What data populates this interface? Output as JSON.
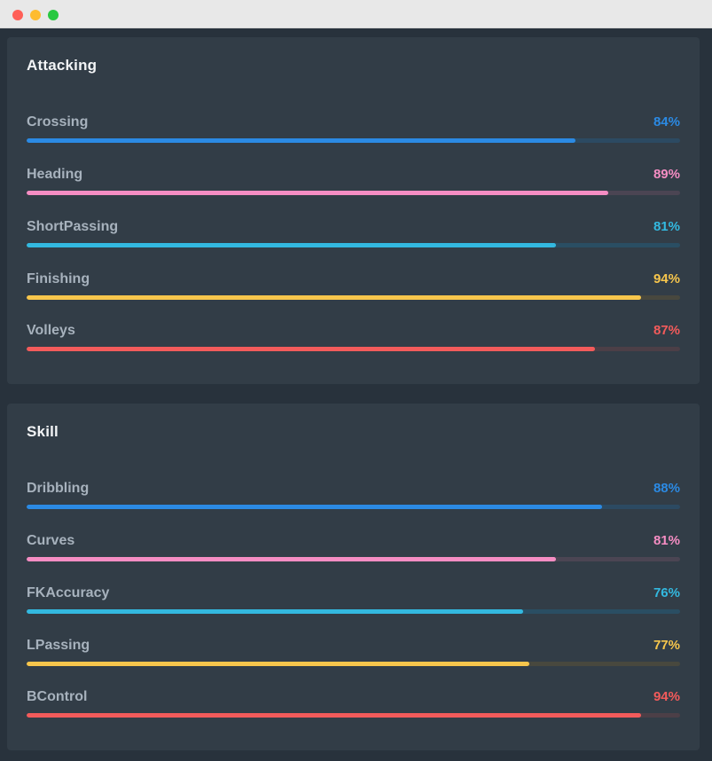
{
  "colors": {
    "blue": "#2b8ae4",
    "pink": "#f58dc3",
    "cyan": "#33b9e0",
    "yellow": "#f7c64c",
    "red": "#f35b5b",
    "track_blue": "#2c4a62",
    "track_pink": "#4b4553",
    "track_cyan": "#2a4e63",
    "track_yellow": "#48483e",
    "track_red": "#4c3f47"
  },
  "sections": [
    {
      "title": "Attacking",
      "stats": [
        {
          "label": "Crossing",
          "value_text": "84%",
          "percent": 84,
          "color": "#2b8ae4",
          "track": "#2c4a62"
        },
        {
          "label": "Heading",
          "value_text": "89%",
          "percent": 89,
          "color": "#f58dc3",
          "track": "#4b4553"
        },
        {
          "label": "ShortPassing",
          "value_text": "81%",
          "percent": 81,
          "color": "#33b9e0",
          "track": "#2a4e63"
        },
        {
          "label": "Finishing",
          "value_text": "94%",
          "percent": 94,
          "color": "#f7c64c",
          "track": "#48483e"
        },
        {
          "label": "Volleys",
          "value_text": "87%",
          "percent": 87,
          "color": "#f35b5b",
          "track": "#4c3f47"
        }
      ]
    },
    {
      "title": "Skill",
      "stats": [
        {
          "label": "Dribbling",
          "value_text": "88%",
          "percent": 88,
          "color": "#2b8ae4",
          "track": "#2c4a62"
        },
        {
          "label": "Curves",
          "value_text": "81%",
          "percent": 81,
          "color": "#f58dc3",
          "track": "#4b4553"
        },
        {
          "label": "FKAccuracy",
          "value_text": "76%",
          "percent": 76,
          "color": "#33b9e0",
          "track": "#2a4e63"
        },
        {
          "label": "LPassing",
          "value_text": "77%",
          "percent": 77,
          "color": "#f7c64c",
          "track": "#48483e"
        },
        {
          "label": "BControl",
          "value_text": "94%",
          "percent": 94,
          "color": "#f35b5b",
          "track": "#4c3f47"
        }
      ]
    }
  ]
}
